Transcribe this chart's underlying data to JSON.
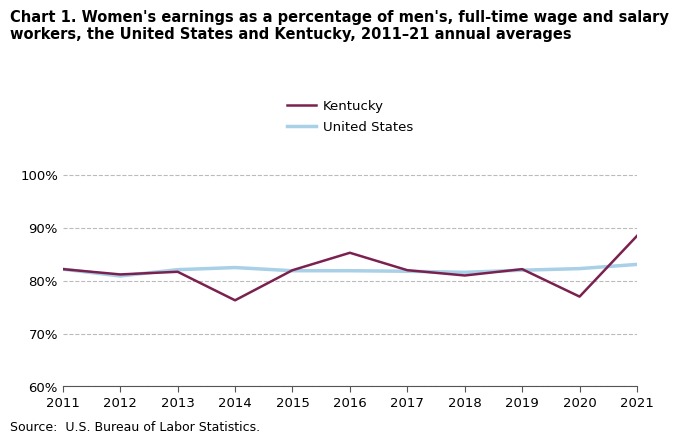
{
  "years": [
    2011,
    2012,
    2013,
    2014,
    2015,
    2016,
    2017,
    2018,
    2019,
    2020,
    2021
  ],
  "kentucky": [
    82.2,
    81.2,
    81.7,
    76.3,
    82.0,
    85.3,
    82.0,
    81.0,
    82.2,
    77.0,
    88.5
  ],
  "us": [
    82.2,
    80.9,
    82.1,
    82.5,
    81.9,
    81.9,
    81.8,
    81.6,
    82.0,
    82.3,
    83.1
  ],
  "kentucky_color": "#7B2150",
  "us_color": "#A8D0E6",
  "title_line1": "Chart 1. Women's earnings as a percentage of men's, full-time wage and salary",
  "title_line2": "workers, the United States and Kentucky, 2011–21 annual averages",
  "source": "Source:  U.S. Bureau of Labor Statistics.",
  "ylim": [
    60,
    101
  ],
  "yticks": [
    60,
    70,
    80,
    90,
    100
  ],
  "ytick_labels": [
    "60%",
    "70%",
    "80%",
    "90%",
    "100%"
  ],
  "legend_kentucky": "Kentucky",
  "legend_us": "United States",
  "title_fontsize": 10.5,
  "source_fontsize": 9,
  "tick_fontsize": 9.5,
  "legend_fontsize": 9.5
}
